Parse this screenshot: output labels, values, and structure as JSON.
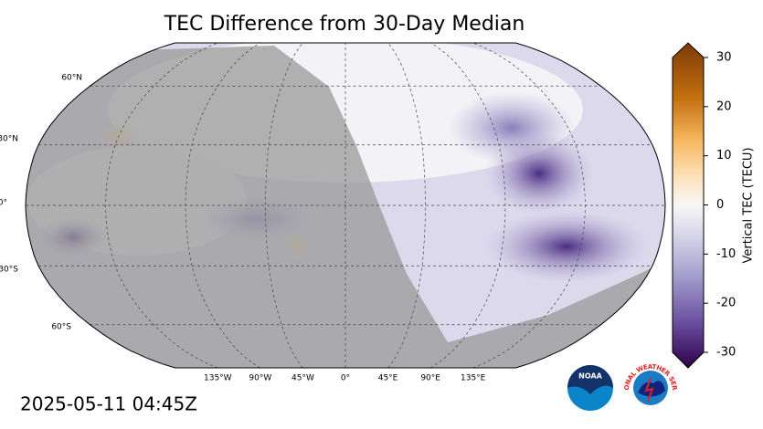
{
  "title": "TEC Difference from 30-Day Median",
  "timestamp": "2025-05-11 04:45Z",
  "map": {
    "lat_labels": [
      "60°N",
      "30°N",
      "0°",
      "30°S",
      "60°S"
    ],
    "lon_labels": [
      "135°W",
      "90°W",
      "45°W",
      "0°",
      "45°E",
      "90°E",
      "135°E"
    ]
  },
  "colorbar": {
    "label": "Vertical TEC (TECU)",
    "range": [
      -30,
      30
    ],
    "ticks": [
      30,
      20,
      10,
      0,
      -10,
      -20,
      -30
    ]
  },
  "logos": {
    "noaa": "NOAA",
    "nws": "NATIONAL WEATHER SERVICE"
  }
}
